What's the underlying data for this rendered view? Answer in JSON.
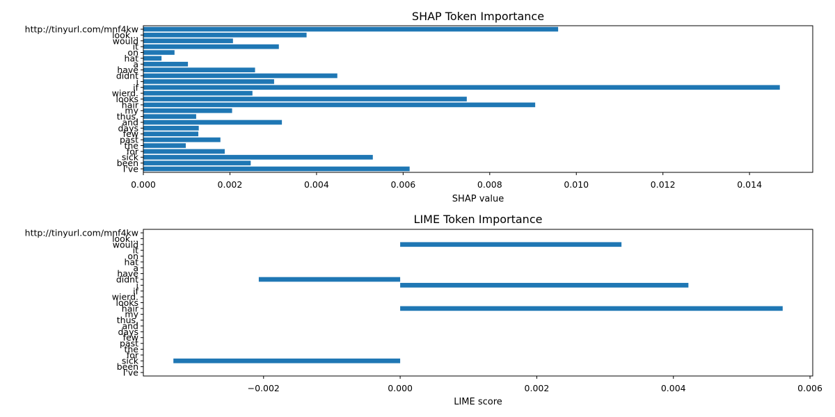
{
  "chart_data": [
    {
      "type": "bar",
      "orientation": "horizontal",
      "title": "SHAP Token Importance",
      "xlabel": "SHAP value",
      "ylabel": "",
      "categories": [
        "I've",
        "been",
        "sick",
        "for",
        "the",
        "past",
        "few",
        "days",
        "and",
        "thus,",
        "my",
        "hair",
        "looks",
        "wierd.",
        "if",
        "i",
        "didnt",
        "have",
        "a",
        "hat",
        "on",
        "it",
        "would",
        "look...",
        "http://tinyurl.com/mnf4kw"
      ],
      "values": [
        0.00615,
        0.00248,
        0.0053,
        0.00188,
        0.00098,
        0.00178,
        0.00127,
        0.00128,
        0.0032,
        0.00122,
        0.00205,
        0.00905,
        0.00747,
        0.00252,
        0.0147,
        0.00302,
        0.00448,
        0.00258,
        0.00103,
        0.00042,
        0.00072,
        0.00313,
        0.00207,
        0.00377,
        0.00958
      ],
      "xlim": [
        0,
        0.01546
      ],
      "xticks": [
        0,
        0.002,
        0.004,
        0.006,
        0.008,
        0.01,
        0.012,
        0.014
      ],
      "xtick_labels": [
        "0.000",
        "0.002",
        "0.004",
        "0.006",
        "0.008",
        "0.010",
        "0.012",
        "0.014"
      ],
      "grid": false,
      "color": "#1f77b4"
    },
    {
      "type": "bar",
      "orientation": "horizontal",
      "title": "LIME Token Importance",
      "xlabel": "LIME score",
      "ylabel": "",
      "categories": [
        "I've",
        "been",
        "sick",
        "for",
        "the",
        "past",
        "few",
        "days",
        "and",
        "thus,",
        "my",
        "hair",
        "looks",
        "wierd.",
        "if",
        "i",
        "didnt",
        "have",
        "a",
        "hat",
        "on",
        "it",
        "would",
        "look...",
        "http://tinyurl.com/mnf4kw"
      ],
      "values": [
        0,
        0,
        -0.00332,
        0,
        0,
        0,
        0,
        0,
        0,
        0,
        0,
        0.0056,
        0,
        0,
        0,
        0.00422,
        -0.00207,
        0,
        0,
        0,
        0,
        0,
        0.00324,
        0,
        0
      ],
      "xlim": [
        -0.00376,
        0.00604
      ],
      "xticks": [
        -0.002,
        0,
        0.002,
        0.004,
        0.006
      ],
      "xtick_labels": [
        "−0.002",
        "0.000",
        "0.002",
        "0.004",
        "0.006"
      ],
      "grid": false,
      "color": "#1f77b4"
    }
  ]
}
